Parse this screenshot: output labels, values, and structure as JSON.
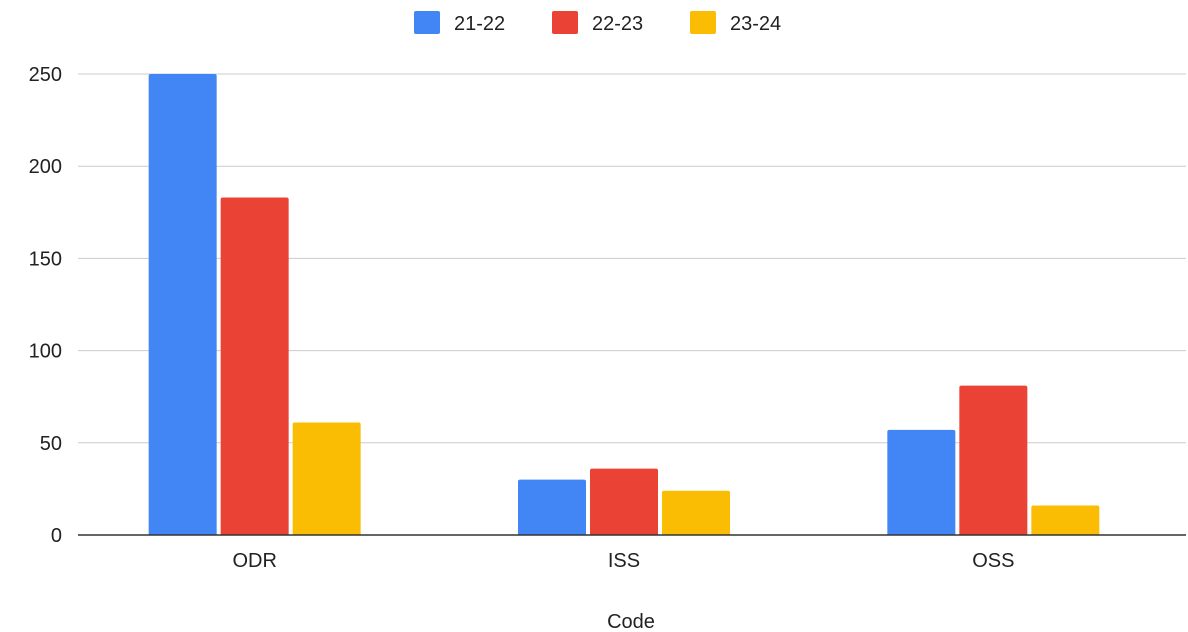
{
  "chart_data": {
    "type": "bar",
    "categories": [
      "ODR",
      "ISS",
      "OSS"
    ],
    "series": [
      {
        "name": "21-22",
        "color": "#4285F4",
        "values": [
          250,
          30,
          57
        ]
      },
      {
        "name": "22-23",
        "color": "#EA4335",
        "values": [
          183,
          36,
          81
        ]
      },
      {
        "name": "23-24",
        "color": "#FBBC04",
        "values": [
          61,
          24,
          16
        ]
      }
    ],
    "title": "",
    "xlabel": "Code",
    "ylabel": "",
    "ylim": [
      0,
      250
    ],
    "yticks": [
      "0",
      "50",
      "100",
      "150",
      "200",
      "250"
    ],
    "grid": true,
    "legend_position": "top-center"
  }
}
